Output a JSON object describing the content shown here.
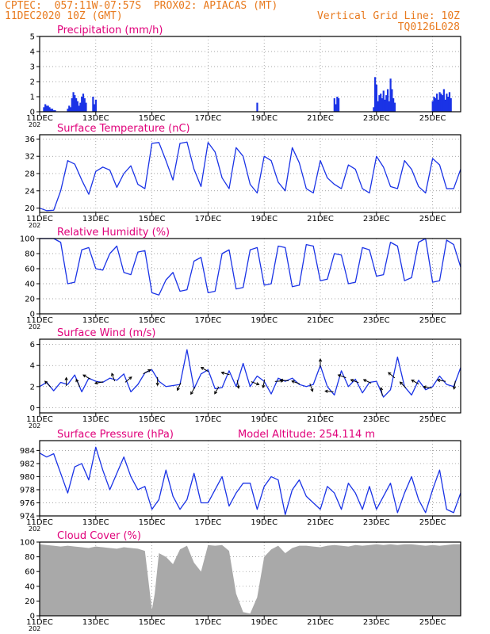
{
  "header": {
    "line1_left": "CPTEC:  057:11W-07:57S  PROX02: APIACAS (MT)",
    "line2_left": "11DEC2020 10Z (GMT)",
    "line2_right": "Vertical Grid Line: 10Z",
    "line3_right": "TQ0126L028"
  },
  "colors": {
    "header": "#e87a1e",
    "title": "#e0007a",
    "line": "#1a33e6",
    "cloud": "#a9a9a9",
    "grid": "#888888"
  },
  "x_axis": {
    "range_days": [
      0,
      15
    ],
    "tick_labels": [
      "11DEC",
      "13DEC",
      "15DEC",
      "17DEC",
      "19DEC",
      "21DEC",
      "23DEC",
      "25DEC"
    ],
    "tick_days": [
      0,
      2,
      4,
      6,
      8,
      10,
      12,
      14
    ],
    "year_stub": "202"
  },
  "chart_data": [
    {
      "type": "bar",
      "title": "Precipitation (mm/h)",
      "ylim": [
        0,
        5
      ],
      "yticks": [
        0,
        1,
        2,
        3,
        4,
        5
      ],
      "x_days": [
        0.15,
        0.2,
        0.25,
        0.3,
        0.35,
        0.4,
        0.45,
        0.5,
        0.55,
        1.0,
        1.05,
        1.1,
        1.15,
        1.2,
        1.25,
        1.3,
        1.35,
        1.4,
        1.45,
        1.5,
        1.55,
        1.6,
        1.65,
        1.9,
        1.95,
        2.0,
        7.75,
        10.5,
        10.55,
        10.6,
        10.65,
        11.9,
        11.95,
        12.0,
        12.05,
        12.1,
        12.15,
        12.2,
        12.25,
        12.3,
        12.35,
        12.4,
        12.45,
        12.5,
        12.55,
        12.6,
        12.65,
        14.0,
        14.05,
        14.1,
        14.15,
        14.2,
        14.25,
        14.3,
        14.35,
        14.4,
        14.45,
        14.5,
        14.55,
        14.6,
        14.65
      ],
      "values": [
        0.3,
        0.5,
        0.4,
        0.4,
        0.3,
        0.2,
        0.2,
        0.1,
        0.1,
        0.2,
        0.4,
        0.3,
        0.9,
        1.3,
        1.1,
        0.9,
        0.7,
        0.4,
        0.6,
        1.0,
        1.2,
        0.9,
        0.6,
        1.0,
        0.5,
        0.8,
        0.6,
        0.9,
        0.5,
        1.0,
        0.9,
        0.3,
        2.3,
        1.8,
        0.7,
        1.1,
        1.2,
        0.9,
        1.4,
        0.8,
        1.1,
        1.5,
        0.7,
        2.2,
        1.5,
        0.9,
        0.6,
        0.7,
        1.0,
        0.9,
        1.2,
        0.8,
        1.3,
        1.2,
        1.1,
        1.5,
        0.8,
        1.2,
        1.0,
        1.3,
        0.9
      ]
    },
    {
      "type": "line",
      "title": "Surface Temperature (nC)",
      "ylim": [
        19,
        37
      ],
      "yticks": [
        20,
        24,
        28,
        32,
        36
      ],
      "x_days": [
        0,
        0.25,
        0.5,
        0.75,
        1,
        1.25,
        1.5,
        1.75,
        2,
        2.25,
        2.5,
        2.75,
        3,
        3.25,
        3.5,
        3.75,
        4,
        4.25,
        4.5,
        4.75,
        5,
        5.25,
        5.5,
        5.75,
        6,
        6.25,
        6.5,
        6.75,
        7,
        7.25,
        7.5,
        7.75,
        8,
        8.25,
        8.5,
        8.75,
        9,
        9.25,
        9.5,
        9.75,
        10,
        10.25,
        10.5,
        10.75,
        11,
        11.25,
        11.5,
        11.75,
        12,
        12.25,
        12.5,
        12.75,
        13,
        13.25,
        13.5,
        13.75,
        14,
        14.25,
        14.5,
        14.75,
        15
      ],
      "values": [
        20,
        19.4,
        19.5,
        24,
        31,
        30.2,
        26.5,
        23.2,
        28.5,
        29.5,
        28.8,
        24.8,
        28,
        29.8,
        25.5,
        24.5,
        35,
        35.2,
        31,
        26.5,
        35,
        35.3,
        29,
        25,
        35.2,
        33,
        27,
        24.5,
        34,
        32,
        25.5,
        23.5,
        32,
        31,
        26,
        24,
        34,
        30.5,
        24.5,
        23.5,
        31,
        27,
        25.5,
        24.5,
        30,
        29,
        24.5,
        23.5,
        32,
        29.5,
        25,
        24.5,
        31,
        29,
        25,
        23.5,
        31.5,
        30,
        24.5,
        24.5,
        29
      ]
    },
    {
      "type": "line",
      "title": "Relative Humidity (%)",
      "ylim": [
        0,
        100
      ],
      "yticks": [
        0,
        20,
        40,
        60,
        80,
        100
      ],
      "x_days": [
        0,
        0.25,
        0.5,
        0.75,
        1,
        1.25,
        1.5,
        1.75,
        2,
        2.25,
        2.5,
        2.75,
        3,
        3.25,
        3.5,
        3.75,
        4,
        4.25,
        4.5,
        4.75,
        5,
        5.25,
        5.5,
        5.75,
        6,
        6.25,
        6.5,
        6.75,
        7,
        7.25,
        7.5,
        7.75,
        8,
        8.25,
        8.5,
        8.75,
        9,
        9.25,
        9.5,
        9.75,
        10,
        10.25,
        10.5,
        10.75,
        11,
        11.25,
        11.5,
        11.75,
        12,
        12.25,
        12.5,
        12.75,
        13,
        13.25,
        13.5,
        13.75,
        14,
        14.25,
        14.5,
        14.75,
        15
      ],
      "values": [
        100,
        100,
        100,
        95,
        40,
        42,
        85,
        88,
        60,
        58,
        80,
        90,
        55,
        52,
        82,
        84,
        28,
        25,
        45,
        55,
        30,
        32,
        70,
        75,
        28,
        30,
        80,
        85,
        33,
        35,
        85,
        88,
        38,
        40,
        90,
        88,
        36,
        38,
        92,
        90,
        44,
        46,
        80,
        78,
        40,
        42,
        88,
        85,
        50,
        52,
        95,
        90,
        44,
        48,
        95,
        100,
        42,
        44,
        98,
        92,
        62
      ]
    },
    {
      "type": "line",
      "title": "Surface Wind (m/s)",
      "ylim": [
        -0.5,
        6.5
      ],
      "yticks": [
        0,
        2,
        4,
        6
      ],
      "x_days": [
        0,
        0.25,
        0.5,
        0.75,
        1,
        1.25,
        1.5,
        1.75,
        2,
        2.25,
        2.5,
        2.75,
        3,
        3.25,
        3.5,
        3.75,
        4,
        4.25,
        4.5,
        4.75,
        5,
        5.25,
        5.5,
        5.75,
        6,
        6.25,
        6.5,
        6.75,
        7,
        7.25,
        7.5,
        7.75,
        8,
        8.25,
        8.5,
        8.75,
        9,
        9.25,
        9.5,
        9.75,
        10,
        10.25,
        10.5,
        10.75,
        11,
        11.25,
        11.5,
        11.75,
        12,
        12.25,
        12.5,
        12.75,
        13,
        13.25,
        13.5,
        13.75,
        14,
        14.25,
        14.5,
        14.75,
        15
      ],
      "values": [
        2,
        2.4,
        1.6,
        2.4,
        2.2,
        3.1,
        1.5,
        2.8,
        2.5,
        2.4,
        2.8,
        2.6,
        3.2,
        1.5,
        2.2,
        3.3,
        3.6,
        2.5,
        2.0,
        2.1,
        2.2,
        5.5,
        1.8,
        3.2,
        3.6,
        1.8,
        1.9,
        3.5,
        2.0,
        4.2,
        2.0,
        3.0,
        2.5,
        1.3,
        2.8,
        2.5,
        2.8,
        2.2,
        2.0,
        2.2,
        4.0,
        2.0,
        1.2,
        3.5,
        2.0,
        2.7,
        1.4,
        2.4,
        2.5,
        1.0,
        1.7,
        4.8,
        2.0,
        1.2,
        2.6,
        1.7,
        2.0,
        3.0,
        2.2,
        2.0,
        3.8
      ],
      "arrows": [
        {
          "day": 0.35,
          "dir": -135
        },
        {
          "day": 0.95,
          "dir": -90
        },
        {
          "day": 1.4,
          "dir": -115
        },
        {
          "day": 1.75,
          "dir": -150
        },
        {
          "day": 2.2,
          "dir": 170
        },
        {
          "day": 2.65,
          "dir": -110
        },
        {
          "day": 3.1,
          "dir": -40
        },
        {
          "day": 3.75,
          "dir": -30
        },
        {
          "day": 4.2,
          "dir": 90
        },
        {
          "day": 5.0,
          "dir": 115
        },
        {
          "day": 5.5,
          "dir": 120
        },
        {
          "day": 5.95,
          "dir": -150
        },
        {
          "day": 6.35,
          "dir": 120
        },
        {
          "day": 6.7,
          "dir": -165
        },
        {
          "day": 7.05,
          "dir": 80
        },
        {
          "day": 7.6,
          "dir": 20
        },
        {
          "day": 8.0,
          "dir": 100
        },
        {
          "day": 8.45,
          "dir": -5
        },
        {
          "day": 8.8,
          "dir": -175
        },
        {
          "day": 9.2,
          "dir": -160
        },
        {
          "day": 9.65,
          "dir": 70
        },
        {
          "day": 10.0,
          "dir": -90
        },
        {
          "day": 10.4,
          "dir": -175
        },
        {
          "day": 10.85,
          "dir": -160
        },
        {
          "day": 11.3,
          "dir": -160
        },
        {
          "day": 11.75,
          "dir": -155
        },
        {
          "day": 12.2,
          "dir": -100
        },
        {
          "day": 12.6,
          "dir": -140
        },
        {
          "day": 13.0,
          "dir": -135
        },
        {
          "day": 13.45,
          "dir": -150
        },
        {
          "day": 13.9,
          "dir": -170
        },
        {
          "day": 14.4,
          "dir": -170
        },
        {
          "day": 14.8,
          "dir": 100
        }
      ]
    },
    {
      "type": "line",
      "title": "Surface Pressure (hPa)",
      "annotation": "Model Altitude: 254.114 m",
      "ylim": [
        974,
        985.5
      ],
      "yticks": [
        974,
        976,
        978,
        980,
        982,
        984
      ],
      "x_days": [
        0,
        0.25,
        0.5,
        0.75,
        1,
        1.25,
        1.5,
        1.75,
        2,
        2.25,
        2.5,
        2.75,
        3,
        3.25,
        3.5,
        3.75,
        4,
        4.25,
        4.5,
        4.75,
        5,
        5.25,
        5.5,
        5.75,
        6,
        6.25,
        6.5,
        6.75,
        7,
        7.25,
        7.5,
        7.75,
        8,
        8.25,
        8.5,
        8.75,
        9,
        9.25,
        9.5,
        9.75,
        10,
        10.25,
        10.5,
        10.75,
        11,
        11.25,
        11.5,
        11.75,
        12,
        12.25,
        12.5,
        12.75,
        13,
        13.25,
        13.5,
        13.75,
        14,
        14.25,
        14.5,
        14.75,
        15
      ],
      "values": [
        983.6,
        983.0,
        983.5,
        980.5,
        977.5,
        981.5,
        982.0,
        979.5,
        984.5,
        981.0,
        978.0,
        980.5,
        983.0,
        980.0,
        978.0,
        978.5,
        975.0,
        976.5,
        981.0,
        977.0,
        975.0,
        976.5,
        980.5,
        976.0,
        976.0,
        978.0,
        980.0,
        975.5,
        977.5,
        979.0,
        979.0,
        975.0,
        978.5,
        980.0,
        979.5,
        974.2,
        978.0,
        979.5,
        977.0,
        976.0,
        975.0,
        978.5,
        977.5,
        975.0,
        979.0,
        977.5,
        975.0,
        978.5,
        975.0,
        977.0,
        979.0,
        974.5,
        977.5,
        980.0,
        976.5,
        974.5,
        978.0,
        981.0,
        975.0,
        974.5,
        977.5
      ]
    },
    {
      "type": "area",
      "title": "Cloud Cover (%)",
      "ylim": [
        0,
        100
      ],
      "yticks": [
        0,
        20,
        40,
        60,
        80,
        100
      ],
      "x_days": [
        0,
        0.25,
        0.5,
        0.75,
        1,
        1.25,
        1.5,
        1.75,
        2,
        2.25,
        2.5,
        2.75,
        3,
        3.25,
        3.5,
        3.75,
        3.9,
        4.0,
        4.1,
        4.25,
        4.5,
        4.75,
        5,
        5.25,
        5.5,
        5.75,
        6,
        6.25,
        6.5,
        6.75,
        7,
        7.25,
        7.5,
        7.75,
        8,
        8.25,
        8.5,
        8.75,
        9,
        9.25,
        9.5,
        9.75,
        10,
        10.25,
        10.5,
        10.75,
        11,
        11.25,
        11.5,
        11.75,
        12,
        12.25,
        12.5,
        12.75,
        13,
        13.25,
        13.5,
        13.75,
        14,
        14.25,
        14.5,
        14.75,
        15
      ],
      "values": [
        97,
        96,
        95,
        94,
        95,
        94,
        93,
        92,
        94,
        93,
        92,
        91,
        93,
        92,
        91,
        88,
        40,
        8,
        30,
        85,
        80,
        70,
        90,
        95,
        72,
        60,
        96,
        95,
        96,
        88,
        30,
        5,
        3,
        25,
        80,
        90,
        95,
        85,
        92,
        95,
        95,
        94,
        93,
        95,
        96,
        95,
        94,
        96,
        95,
        96,
        97,
        96,
        97,
        96,
        97,
        97,
        96,
        95,
        96,
        95,
        96,
        97,
        97
      ]
    }
  ]
}
